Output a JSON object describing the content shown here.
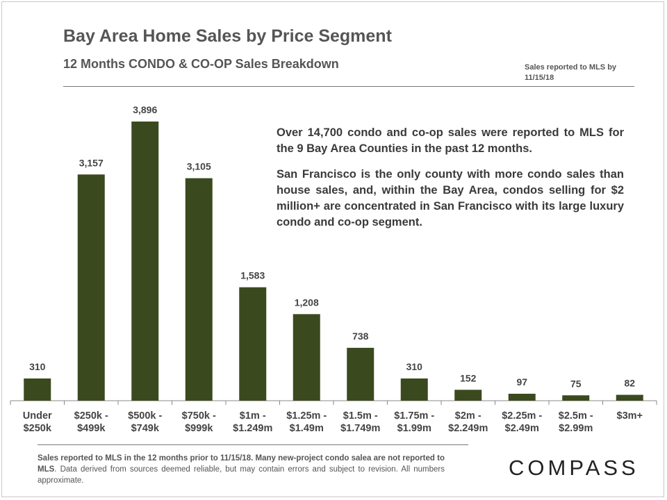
{
  "header": {
    "title": "Bay Area Home Sales by Price Segment",
    "subtitle": "12 Months CONDO  & CO-OP Sales Breakdown",
    "note": "Sales reported to MLS by 11/15/18"
  },
  "annotation": {
    "paragraph1": "Over 14,700 condo and co-op sales were reported to MLS for the 9 Bay Area Counties in the past 12 months.",
    "paragraph2": "San Francisco is the only county with more condo sales than house sales, and, within the Bay Area, condos selling for $2 million+ are concentrated in San Francisco with its large luxury condo and co-op segment."
  },
  "footnote": {
    "bold_part": "Sales reported to MLS in the 12 months prior to 11/15/18. Many new-project condo salea are not reported to MLS",
    "rest": ". Data derived from sources deemed reliable, but may contain errors and subject to revision. All numbers approximate."
  },
  "logo": {
    "text": "COMPASS"
  },
  "colors": {
    "bar": "#3b4a1e",
    "axis": "#888888",
    "text": "#444444"
  },
  "chart_data": {
    "type": "bar",
    "categories": [
      [
        "Under",
        "$250k"
      ],
      [
        "$250k -",
        "$499k"
      ],
      [
        "$500k -",
        "$749k"
      ],
      [
        "$750k -",
        "$999k"
      ],
      [
        "$1m -",
        "$1.249m"
      ],
      [
        "$1.25m -",
        "$1.49m"
      ],
      [
        "$1.5m -",
        "$1.749m"
      ],
      [
        "$1.75m -",
        "$1.99m"
      ],
      [
        "$2m -",
        "$2.249m"
      ],
      [
        "$2.25m -",
        "$2.49m"
      ],
      [
        "$2.5m -",
        "$2.99m"
      ],
      [
        "$3m+"
      ]
    ],
    "values": [
      310,
      3157,
      3896,
      3105,
      1583,
      1208,
      738,
      310,
      152,
      97,
      75,
      82
    ],
    "data_labels": [
      "310",
      "3,157",
      "3,896",
      "3,105",
      "1,583",
      "1,208",
      "738",
      "310",
      "152",
      "97",
      "75",
      "82"
    ],
    "ylim": [
      0,
      3896
    ],
    "grid": false,
    "legend": "none"
  }
}
